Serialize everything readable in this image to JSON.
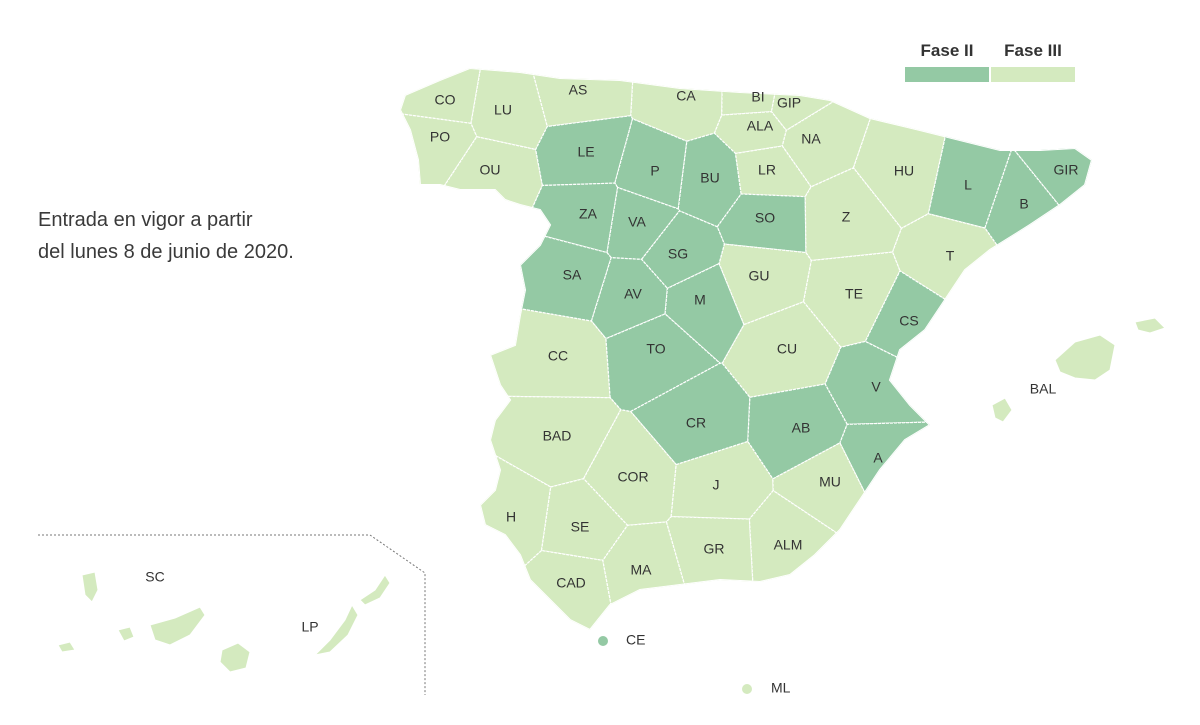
{
  "map": {
    "note": [
      "Entrada en vigor a partir",
      "del lunes 8 de junio de 2020."
    ],
    "legend": [
      {
        "label": "Fase II",
        "color": "#94c9a4"
      },
      {
        "label": "Fase III",
        "color": "#d4eabf"
      }
    ],
    "provinces": [
      {
        "label": "CO",
        "color": "#d4eabf"
      },
      {
        "label": "LU",
        "color": "#d4eabf"
      },
      {
        "label": "AS",
        "color": "#d4eabf"
      },
      {
        "label": "CA",
        "color": "#d4eabf"
      },
      {
        "label": "BI",
        "color": "#d4eabf"
      },
      {
        "label": "GIP",
        "color": "#d4eabf"
      },
      {
        "label": "ALA",
        "color": "#d4eabf"
      },
      {
        "label": "NA",
        "color": "#d4eabf"
      },
      {
        "label": "PO",
        "color": "#d4eabf"
      },
      {
        "label": "OU",
        "color": "#d4eabf"
      },
      {
        "label": "LE",
        "color": "#94c9a4"
      },
      {
        "label": "P",
        "color": "#94c9a4"
      },
      {
        "label": "BU",
        "color": "#94c9a4"
      },
      {
        "label": "LR",
        "color": "#d4eabf"
      },
      {
        "label": "HU",
        "color": "#d4eabf"
      },
      {
        "label": "L",
        "color": "#94c9a4"
      },
      {
        "label": "GIR",
        "color": "#94c9a4"
      },
      {
        "label": "B",
        "color": "#94c9a4"
      },
      {
        "label": "ZA",
        "color": "#94c9a4"
      },
      {
        "label": "VA",
        "color": "#94c9a4"
      },
      {
        "label": "SO",
        "color": "#94c9a4"
      },
      {
        "label": "Z",
        "color": "#d4eabf"
      },
      {
        "label": "SG",
        "color": "#94c9a4"
      },
      {
        "label": "T",
        "color": "#d4eabf"
      },
      {
        "label": "SA",
        "color": "#94c9a4"
      },
      {
        "label": "AV",
        "color": "#94c9a4"
      },
      {
        "label": "M",
        "color": "#94c9a4"
      },
      {
        "label": "GU",
        "color": "#d4eabf"
      },
      {
        "label": "TE",
        "color": "#d4eabf"
      },
      {
        "label": "CS",
        "color": "#94c9a4"
      },
      {
        "label": "CC",
        "color": "#d4eabf"
      },
      {
        "label": "TO",
        "color": "#94c9a4"
      },
      {
        "label": "CU",
        "color": "#d4eabf"
      },
      {
        "label": "V",
        "color": "#94c9a4"
      },
      {
        "label": "BAD",
        "color": "#d4eabf"
      },
      {
        "label": "CR",
        "color": "#94c9a4"
      },
      {
        "label": "AB",
        "color": "#94c9a4"
      },
      {
        "label": "A",
        "color": "#94c9a4"
      },
      {
        "label": "COR",
        "color": "#d4eabf"
      },
      {
        "label": "J",
        "color": "#d4eabf"
      },
      {
        "label": "MU",
        "color": "#d4eabf"
      },
      {
        "label": "H",
        "color": "#d4eabf"
      },
      {
        "label": "SE",
        "color": "#d4eabf"
      },
      {
        "label": "GR",
        "color": "#d4eabf"
      },
      {
        "label": "ALM",
        "color": "#d4eabf"
      },
      {
        "label": "CAD",
        "color": "#d4eabf"
      },
      {
        "label": "MA",
        "color": "#d4eabf"
      },
      {
        "label": "BAL",
        "color": "#d4eabf"
      },
      {
        "label": "CE",
        "color": "#94c9a4"
      },
      {
        "label": "ML",
        "color": "#d4eabf"
      },
      {
        "label": "SC",
        "color": "#d4eabf"
      },
      {
        "label": "LP",
        "color": "#d4eabf"
      }
    ]
  }
}
